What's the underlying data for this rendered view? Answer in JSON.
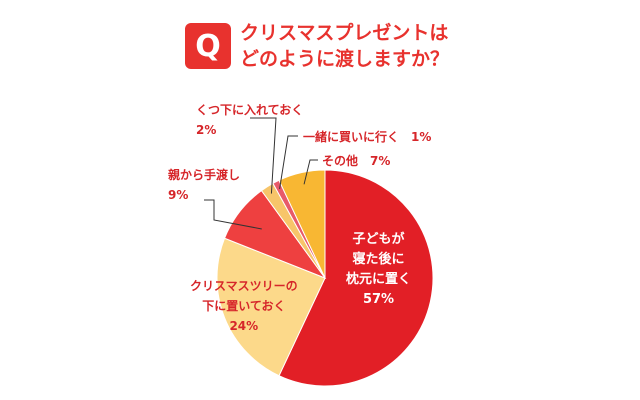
{
  "title": {
    "q_mark": "Q",
    "line1": "クリスマスプレゼントは",
    "line2": "どのように渡しますか？"
  },
  "chart_data": {
    "type": "pie",
    "title": "クリスマスプレゼントはどのように渡しますか？",
    "slices": [
      {
        "label_lines": [
          "子どもが",
          "寝た後に",
          "枕元に置く"
        ],
        "value": 57,
        "value_label": "57%",
        "color": "#e21f26"
      },
      {
        "label_lines": [
          "クリスマスツリーの",
          "下に置いておく"
        ],
        "value": 24,
        "value_label": "24%",
        "color": "#fcd98a"
      },
      {
        "label_lines": [
          "親から手渡し"
        ],
        "value": 9,
        "value_label": "9%",
        "color": "#ee4040"
      },
      {
        "label_lines": [
          "くつ下に入れておく"
        ],
        "value": 2,
        "value_label": "2%",
        "color": "#f7c56a"
      },
      {
        "label_lines": [
          "一緒に買いに行く"
        ],
        "value": 1,
        "value_label": "1%",
        "color": "#e85a6a"
      },
      {
        "label_lines": [
          "その他"
        ],
        "value": 7,
        "value_label": "7%",
        "color": "#f8b733"
      }
    ],
    "start_angle_deg": 0,
    "direction": "clockwise",
    "legend": "none"
  }
}
